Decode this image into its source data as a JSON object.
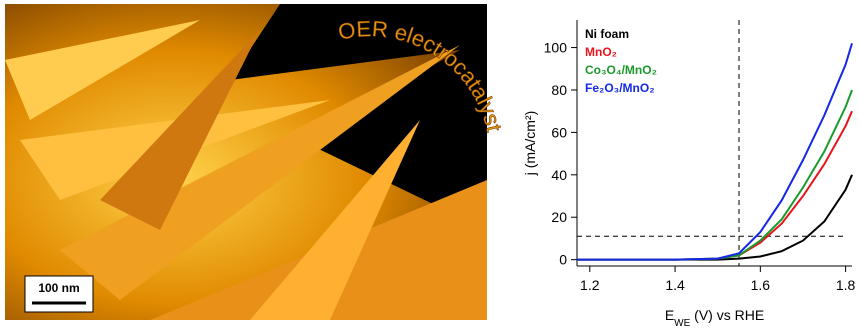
{
  "image": {
    "arc_text": "OER electrocatalyst",
    "scale_bar": "100 nm"
  },
  "chart_data": {
    "type": "line",
    "y_label": "j (mA/cm²)",
    "x_label": [
      "E",
      "WE",
      " (V) vs RHE"
    ],
    "x": [
      1.17,
      1.3,
      1.4,
      1.5,
      1.55,
      1.6,
      1.65,
      1.7,
      1.75,
      1.8,
      1.815
    ],
    "series": [
      {
        "name": "Ni foam",
        "color": "#000000",
        "values": [
          0,
          0,
          0,
          0,
          0.5,
          1.5,
          4,
          9,
          18,
          33,
          40
        ]
      },
      {
        "name": "MnO₂",
        "color": "#e8141e",
        "values": [
          0,
          0,
          0,
          0.5,
          2,
          8,
          17,
          30,
          45,
          63,
          70
        ]
      },
      {
        "name": "Co₃O₄/MnO₂",
        "color": "#1a9a2a",
        "values": [
          0,
          0,
          0,
          0.5,
          2,
          9,
          19,
          34,
          51,
          72,
          80
        ]
      },
      {
        "name": "Fe₂O₃/MnO₂",
        "color": "#1428e6",
        "values": [
          0,
          0,
          0,
          0.5,
          3,
          13,
          28,
          47,
          68,
          92,
          102
        ]
      }
    ],
    "xlim": [
      1.17,
      1.815
    ],
    "ylim": [
      -3,
      113
    ],
    "xticks": [
      1.2,
      1.4,
      1.6,
      1.8
    ],
    "yticks": [
      0,
      20,
      40,
      60,
      80,
      100
    ],
    "vline": 1.55,
    "hline": 11,
    "legend": "upper-left"
  }
}
